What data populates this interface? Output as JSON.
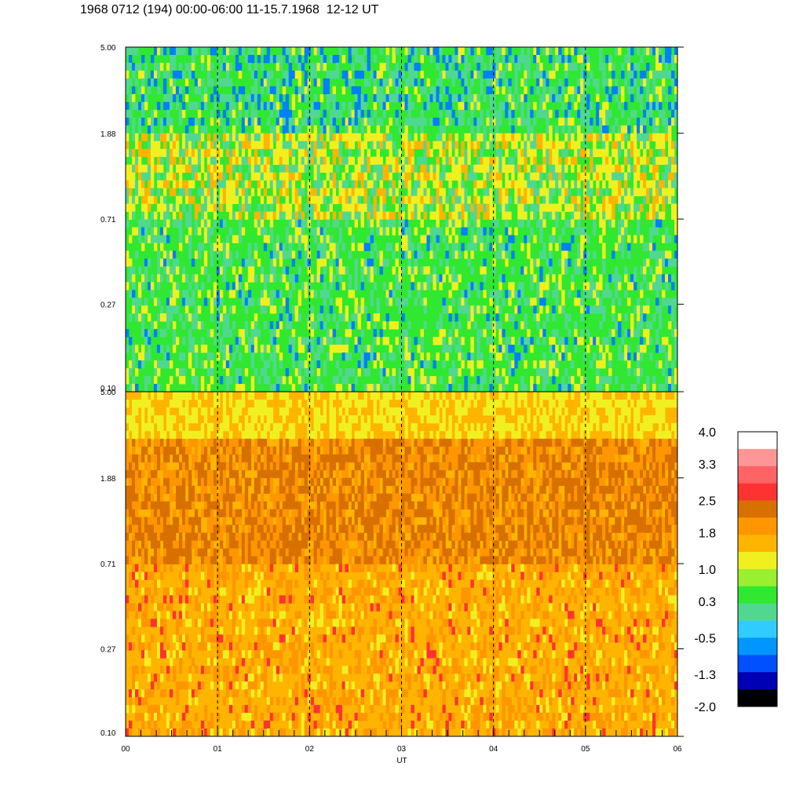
{
  "title": "1968 0712 (194) 00:00-06:00 11-15.7.1968  12-12 UT",
  "chart_data": {
    "type": "heatmap",
    "title": "1968 0712 (194) 00:00-06:00 11-15.7.1968  12-12 UT",
    "xlabel": "UT",
    "x_ticks": [
      "00",
      "01",
      "02",
      "03",
      "04",
      "05",
      "06"
    ],
    "xlim": [
      0,
      6
    ],
    "x_units": "hours UT",
    "y_scale": "log",
    "panels": [
      {
        "name": "upper",
        "y_ticks": [
          "5.00",
          "1.88",
          "0.71",
          "0.27",
          "0.10"
        ],
        "ylim": [
          0.1,
          5.0
        ],
        "dominant_colors": [
          "#30e830",
          "#50d890",
          "#f0f020",
          "#ffb400",
          "#0080ff"
        ],
        "mean_level_by_hour": [
          0.6,
          0.5,
          0.5,
          0.4,
          0.3,
          0.5
        ],
        "notes_visible": "vertical dashed lines at each hour"
      },
      {
        "name": "lower",
        "y_ticks": [
          "5.00",
          "1.88",
          "0.71",
          "0.27",
          "0.10"
        ],
        "ylim": [
          0.1,
          5.0
        ],
        "dominant_colors": [
          "#ffb400",
          "#ff9600",
          "#d87000",
          "#f0f020",
          "#ff3232"
        ],
        "mean_level_by_hour": [
          1.7,
          1.7,
          1.8,
          1.7,
          1.7,
          1.7
        ]
      }
    ],
    "colorbar": {
      "labels": [
        "4.0",
        "3.3",
        "2.5",
        "1.8",
        "1.0",
        "0.3",
        "-0.5",
        "-1.3",
        "-2.0"
      ],
      "range": [
        -2.0,
        4.0
      ],
      "colors_top_to_bottom": [
        "#ffffff",
        "#ff9696",
        "#ff6464",
        "#ff3232",
        "#d87000",
        "#ff9600",
        "#ffb400",
        "#f0f020",
        "#98f030",
        "#30e830",
        "#50d890",
        "#30ccff",
        "#0096ff",
        "#0050ff",
        "#0000b4",
        "#000000"
      ]
    },
    "grid": "vertical dashed hour lines"
  }
}
